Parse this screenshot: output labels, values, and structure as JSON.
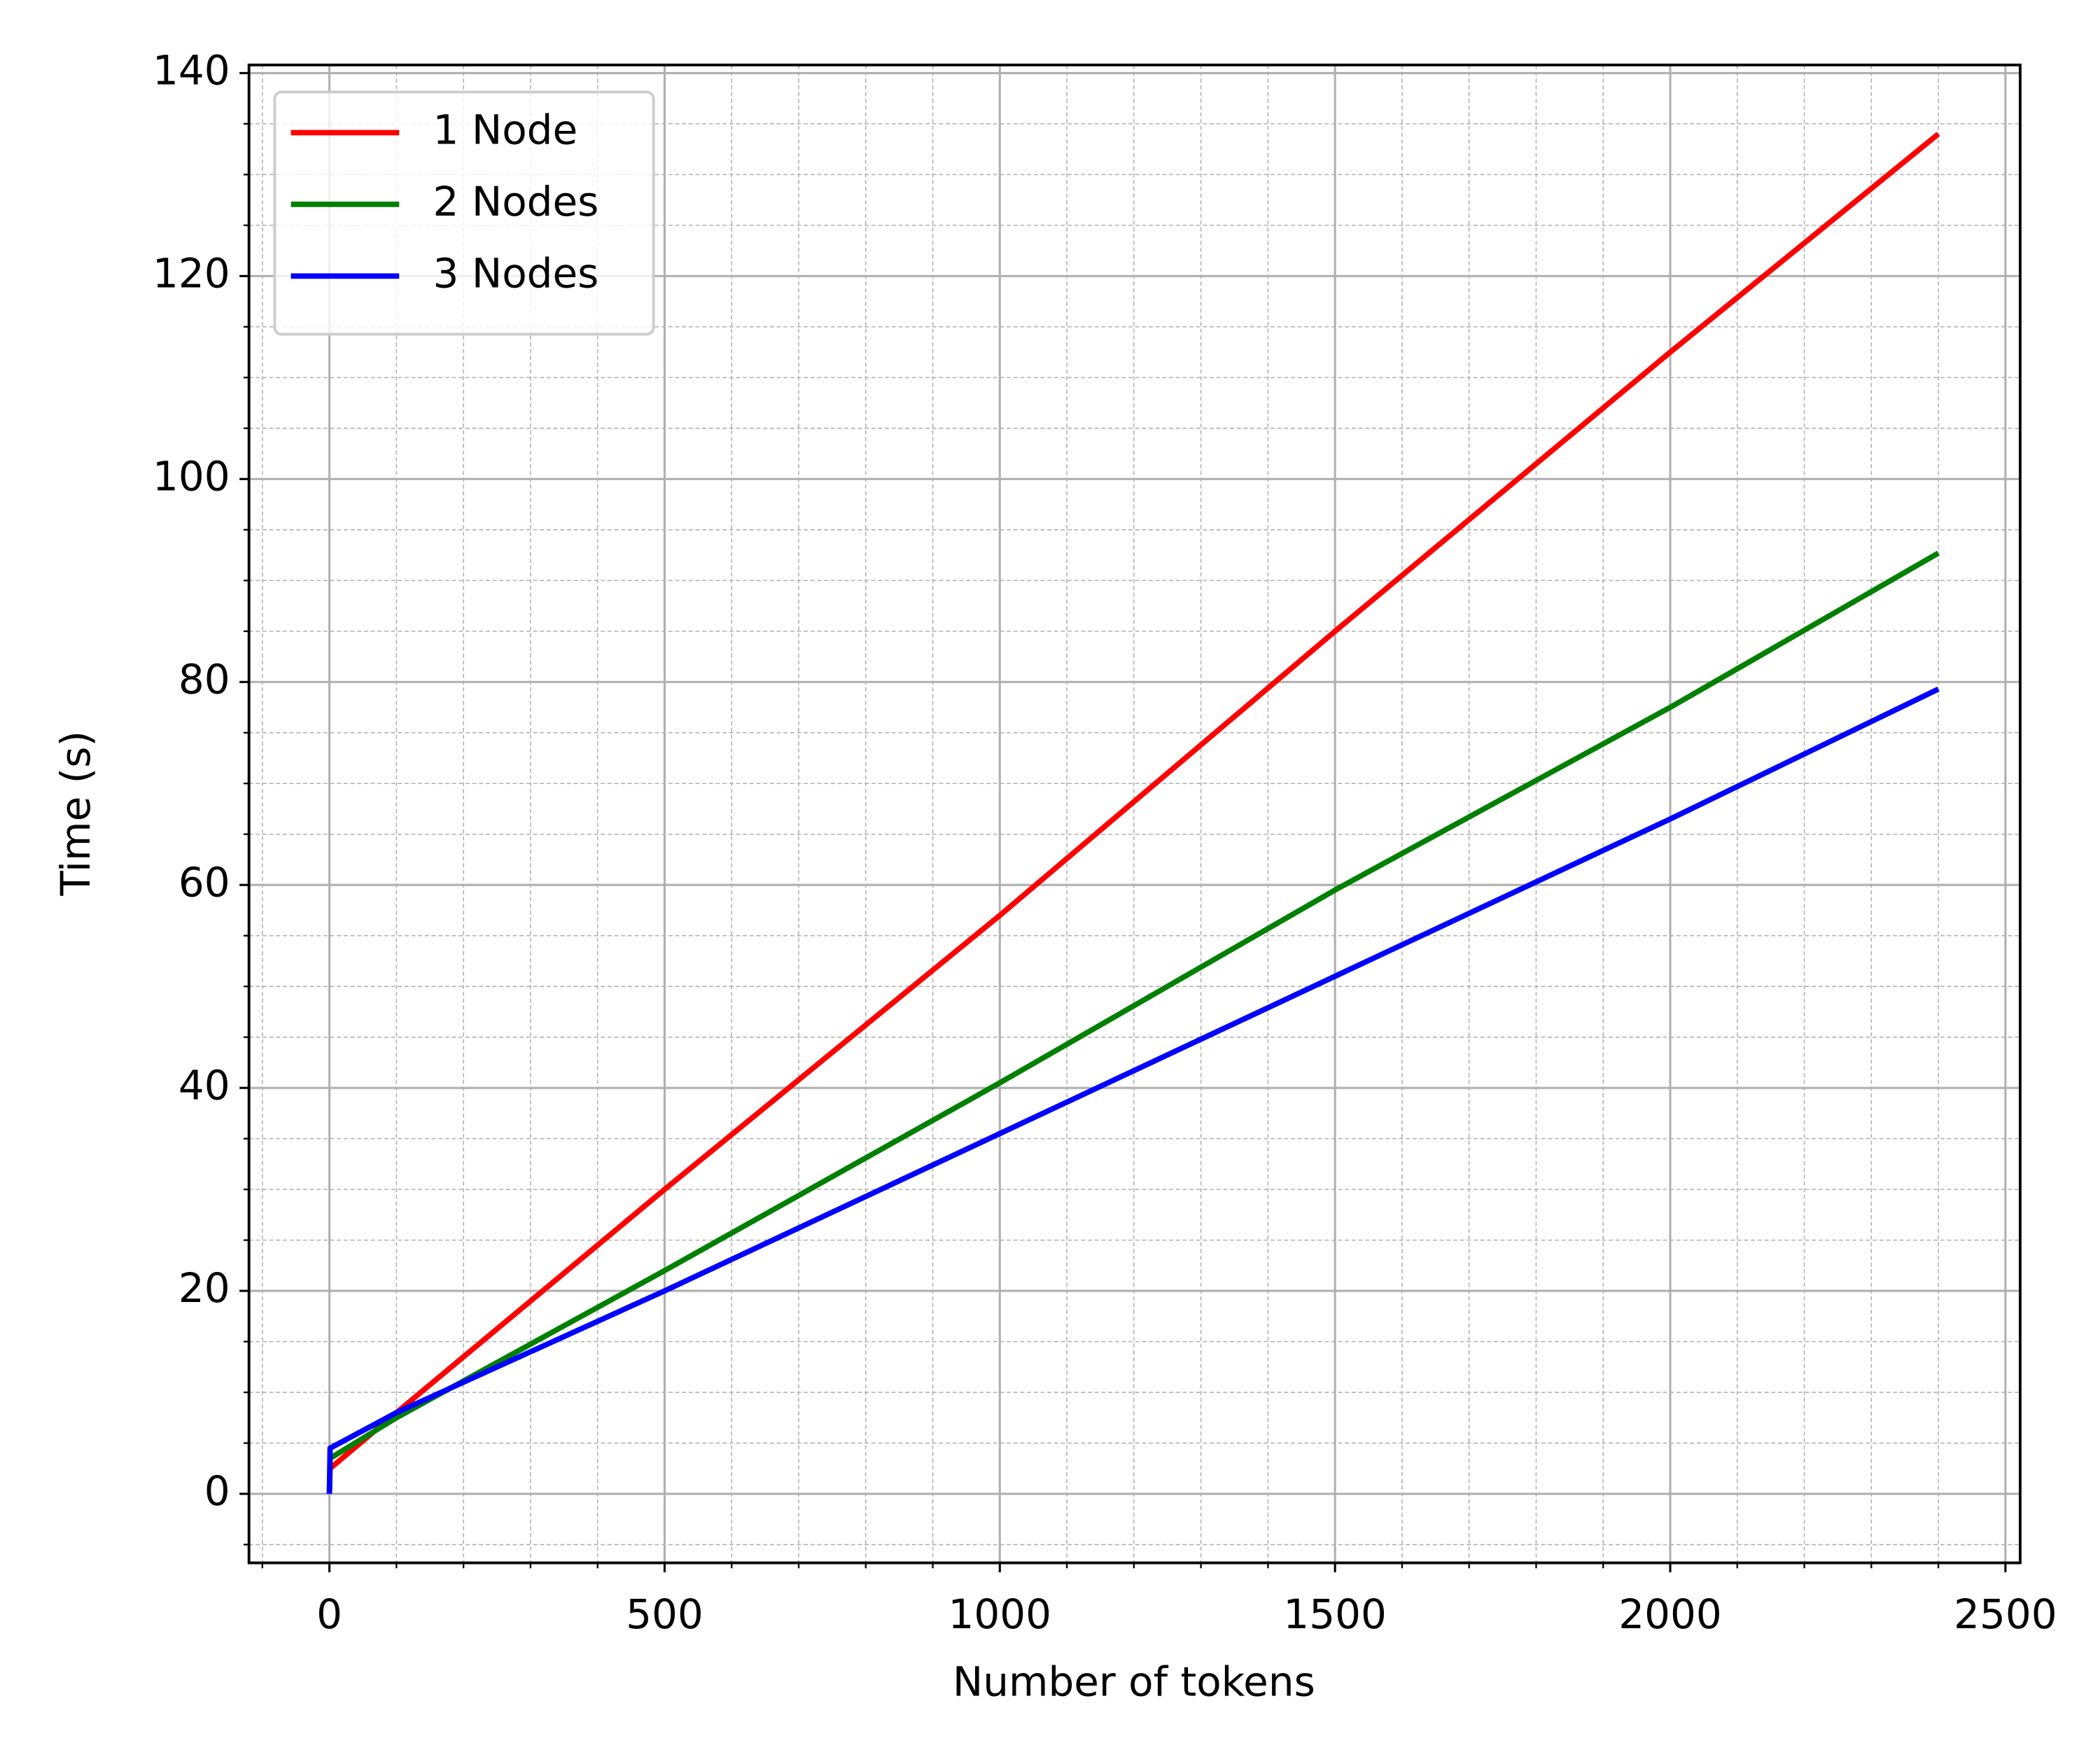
{
  "chart_data": {
    "type": "line",
    "x_label": "Number of tokens",
    "y_label": "Time (s)",
    "x": [
      0,
      1,
      100,
      500,
      1000,
      1500,
      2000,
      2400
    ],
    "series": [
      {
        "name": "1 Node",
        "color": "#ff0000",
        "values": [
          0,
          2.5,
          8,
          30,
          57,
          85,
          112.5,
          134
        ]
      },
      {
        "name": "2 Nodes",
        "color": "#008000",
        "values": [
          0,
          3.5,
          7.5,
          22,
          40.5,
          59.5,
          77.5,
          92.7
        ]
      },
      {
        "name": "3 Nodes",
        "color": "#0000ff",
        "values": [
          0,
          4.5,
          8,
          20,
          35.5,
          51,
          66.5,
          79.3
        ]
      }
    ],
    "xlim": [
      -120,
      2522
    ],
    "ylim": [
      -6.8,
      140.8
    ],
    "xticks": [
      0,
      500,
      1000,
      1500,
      2000,
      2500
    ],
    "yticks": [
      0,
      20,
      40,
      60,
      80,
      100,
      120,
      140
    ],
    "grid": true,
    "minor_grid": true,
    "minor_divisions": {
      "x": 5,
      "y": 4
    },
    "legend": "upper left"
  }
}
